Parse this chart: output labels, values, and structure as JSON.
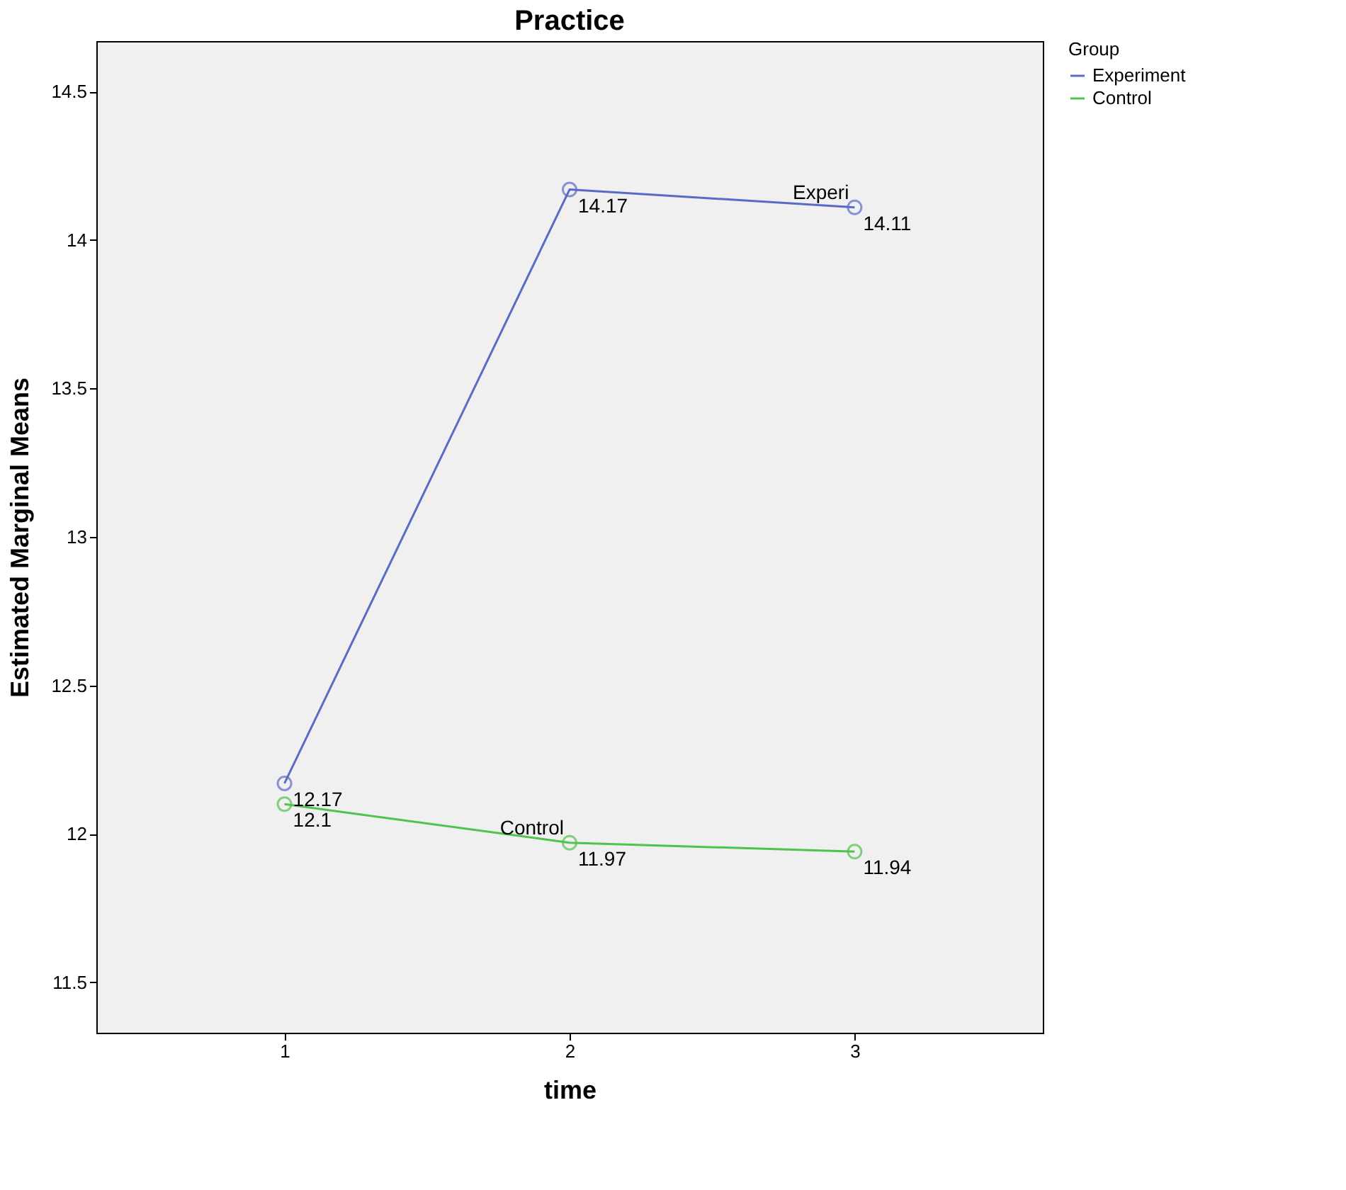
{
  "chart_data": {
    "type": "line",
    "title": "Practice",
    "xlabel": "time",
    "ylabel": "Estimated Marginal Means",
    "legend_title": "Group",
    "x": [
      1,
      2,
      3
    ],
    "xlim": [
      0.34,
      3.66
    ],
    "xticks": [
      1,
      2,
      3
    ],
    "ylim": [
      11.33,
      14.67
    ],
    "yticks": [
      11.5,
      12,
      12.5,
      13,
      13.5,
      14,
      14.5
    ],
    "series": [
      {
        "name": "Experiment",
        "color": "#5a6bc6",
        "values": [
          12.17,
          14.17,
          14.11
        ]
      },
      {
        "name": "Control",
        "color": "#4ec34e",
        "values": [
          12.1,
          11.97,
          11.94
        ]
      }
    ],
    "annotations": [
      {
        "text": "Experi",
        "x": 3,
        "y": 14.11
      },
      {
        "text": "Control",
        "x": 2,
        "y": 11.97
      }
    ],
    "data_labels": true,
    "marker": "circle",
    "line_style": "solid",
    "grid": false,
    "legend": "top right"
  }
}
